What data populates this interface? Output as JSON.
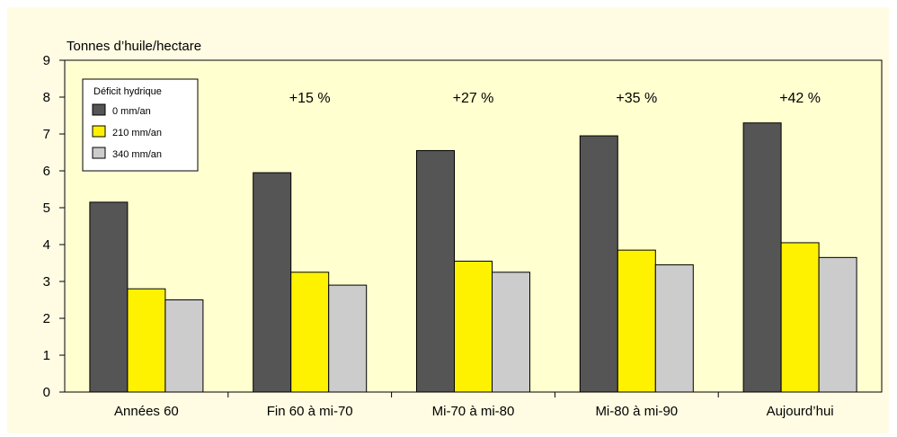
{
  "page": {
    "background": "#FFFCE3"
  },
  "chart_data": {
    "type": "bar",
    "ylabel": "Tonnes d’huile/hectare",
    "ylim": [
      0,
      9
    ],
    "yticks": [
      0,
      1,
      2,
      3,
      4,
      5,
      6,
      7,
      8,
      9
    ],
    "grid": false,
    "categories": [
      "Années 60",
      "Fin 60 à mi-70",
      "Mi-70 à mi-80",
      "Mi-80 à mi-90",
      "Aujourd’hui"
    ],
    "series": [
      {
        "name": "0 mm/an",
        "color": "#555555",
        "values": [
          5.15,
          5.95,
          6.55,
          6.95,
          7.3
        ]
      },
      {
        "name": "210 mm/an",
        "color": "#FFF200",
        "values": [
          2.8,
          3.25,
          3.55,
          3.85,
          4.05
        ]
      },
      {
        "name": "340 mm/an",
        "color": "#CCCCCC",
        "values": [
          2.5,
          2.9,
          3.25,
          3.45,
          3.65
        ]
      }
    ],
    "annotations": [
      "",
      "+15 %",
      "+27 %",
      "+35 %",
      "+42 %"
    ],
    "legend": {
      "title": "Déficit hydrique",
      "placement": "top-left"
    },
    "colors": {
      "plot_background": "#FFFFD0",
      "frame": "#000000"
    }
  }
}
